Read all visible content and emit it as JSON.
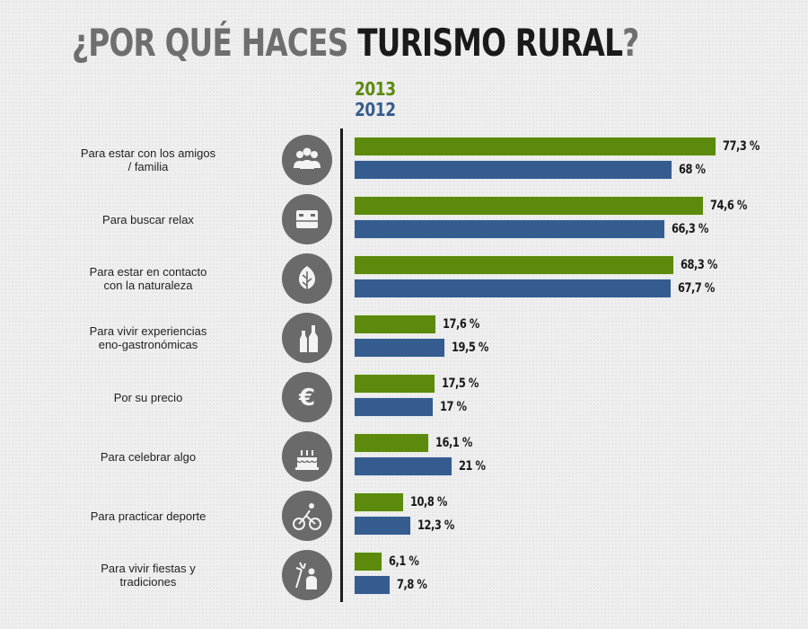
{
  "chart_data": {
    "type": "bar",
    "orientation": "horizontal",
    "title": {
      "prefix": "¿POR QUÉ HACES ",
      "emphasis": "TURISMO RURAL",
      "suffix": "?"
    },
    "xlim": [
      0,
      100
    ],
    "legend": {
      "placement": "top"
    },
    "categories": [
      {
        "label": "Para estar con los amigos\n/ familia",
        "icon": "group-of-people-icon"
      },
      {
        "label": "Para buscar relax",
        "icon": "hammock-bed-icon"
      },
      {
        "label": "Para estar en contacto\ncon la naturaleza",
        "icon": "leaf-icon"
      },
      {
        "label": "Para vivir experiencias\neno-gastronómicas",
        "icon": "wine-bottles-icon"
      },
      {
        "label": "Por su precio",
        "icon": "euro-icon"
      },
      {
        "label": "Para celebrar algo",
        "icon": "birthday-cake-icon"
      },
      {
        "label": "Para practicar deporte",
        "icon": "cyclist-icon"
      },
      {
        "label": "Para vivir fiestas y\ntradiciones",
        "icon": "fireworks-icon"
      }
    ],
    "series": [
      {
        "name": "2013",
        "color": "#5b8a0c",
        "values": [
          77.3,
          74.6,
          68.3,
          17.6,
          17.5,
          16.1,
          10.8,
          6.1
        ],
        "labels": [
          "77,3 %",
          "74,6 %",
          "68,3 %",
          "17,6 %",
          "17,5 %",
          "16,1 %",
          "10,8 %",
          "6,1 %"
        ]
      },
      {
        "name": "2012",
        "color": "#355c8f",
        "values": [
          68,
          66.3,
          67.7,
          19.5,
          17,
          21,
          12.3,
          7.8
        ],
        "labels": [
          "68 %",
          "66,3 %",
          "67,7 %",
          "19,5 %",
          "17 %",
          "21 %",
          "12,3 %",
          "7,8 %"
        ]
      }
    ]
  }
}
